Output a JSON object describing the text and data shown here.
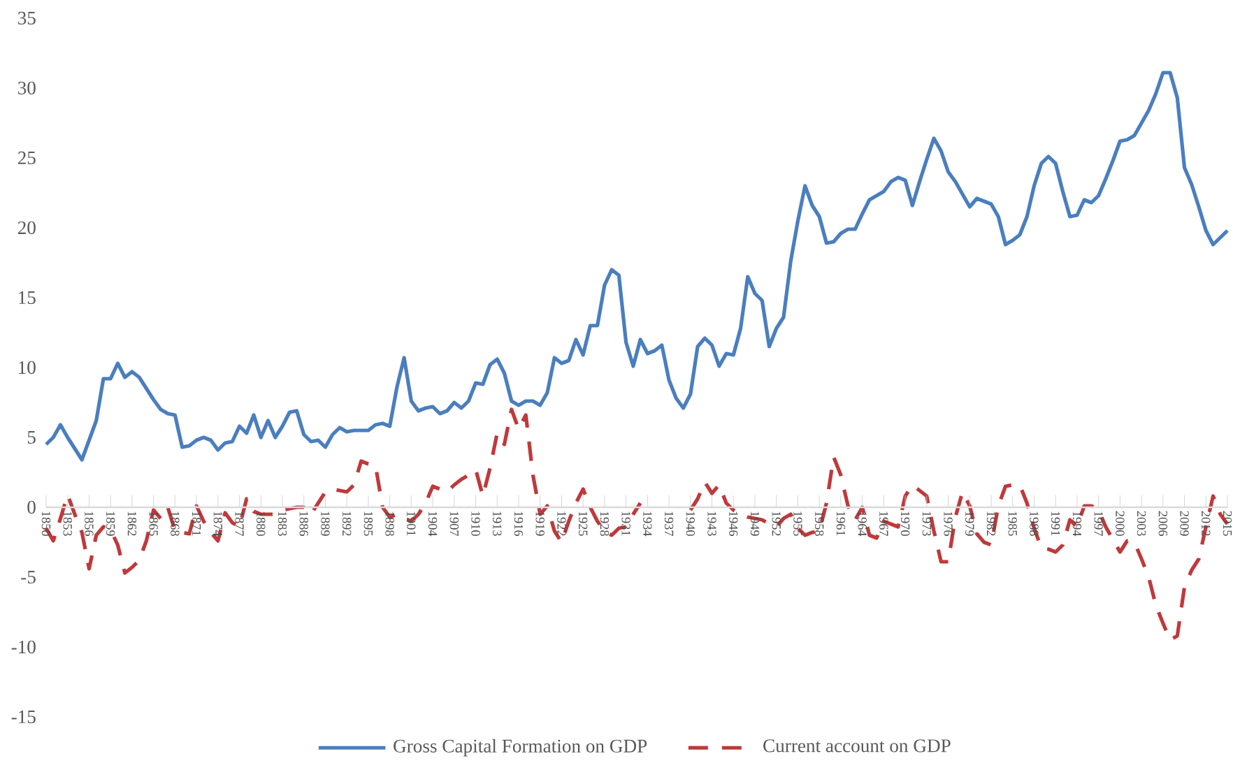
{
  "chart_data": {
    "type": "line",
    "categories": [
      "1850",
      null,
      null,
      "1853",
      null,
      null,
      "1856",
      null,
      null,
      "1859",
      null,
      null,
      "1862",
      null,
      null,
      "1865",
      null,
      null,
      "1868",
      null,
      null,
      "1871",
      null,
      null,
      "1874",
      null,
      null,
      "1877",
      null,
      null,
      "1880",
      null,
      null,
      "1883",
      null,
      null,
      "1886",
      null,
      null,
      "1889",
      null,
      null,
      "1892",
      null,
      null,
      "1895",
      null,
      null,
      "1898",
      null,
      null,
      "1901",
      null,
      null,
      "1904",
      null,
      null,
      "1907",
      null,
      null,
      "1910",
      null,
      null,
      "1913",
      null,
      null,
      "1916",
      null,
      null,
      "1919",
      null,
      null,
      "1922",
      null,
      null,
      "1925",
      null,
      null,
      "1928",
      null,
      null,
      "1931",
      null,
      null,
      "1934",
      null,
      null,
      "1937",
      null,
      null,
      "1940",
      null,
      null,
      "1943",
      null,
      null,
      "1946",
      null,
      null,
      "1949",
      null,
      null,
      "1952",
      null,
      null,
      "1955",
      null,
      null,
      "1958",
      null,
      null,
      "1961",
      null,
      null,
      "1964",
      null,
      null,
      "1967",
      null,
      null,
      "1970",
      null,
      null,
      "1973",
      null,
      null,
      "1976",
      null,
      null,
      "1979",
      null,
      null,
      "1982",
      null,
      null,
      "1985",
      null,
      null,
      "1988",
      null,
      null,
      "1991",
      null,
      null,
      "1994",
      null,
      null,
      "1997",
      null,
      null,
      "2000",
      null,
      null,
      "2003",
      null,
      null,
      "2006",
      null,
      null,
      "2009",
      null,
      null,
      "2012",
      null,
      null,
      "2015"
    ],
    "series": [
      {
        "name": "Gross Capital Formation on GDP",
        "color": "#4a7ebf",
        "line_style": "solid",
        "values": [
          4.5,
          5.0,
          5.9,
          5.0,
          4.2,
          3.4,
          4.8,
          6.2,
          9.2,
          9.2,
          10.3,
          9.3,
          9.7,
          9.3,
          8.5,
          7.7,
          7.0,
          6.7,
          6.6,
          4.3,
          4.4,
          4.8,
          5.0,
          4.8,
          4.1,
          4.6,
          4.7,
          5.8,
          5.3,
          6.6,
          5.0,
          6.2,
          5.0,
          5.8,
          6.8,
          6.9,
          5.2,
          4.7,
          4.8,
          4.3,
          5.2,
          5.7,
          5.4,
          5.5,
          5.5,
          5.5,
          5.9,
          6.0,
          5.8,
          8.6,
          10.7,
          7.6,
          6.9,
          7.1,
          7.2,
          6.7,
          6.9,
          7.5,
          7.1,
          7.6,
          8.9,
          8.8,
          10.2,
          10.6,
          9.6,
          7.6,
          7.3,
          7.6,
          7.6,
          7.3,
          8.2,
          10.7,
          10.3,
          10.5,
          12.0,
          10.9,
          13.0,
          13.0,
          15.9,
          17.0,
          16.6,
          11.8,
          10.1,
          12.0,
          11.0,
          11.2,
          11.6,
          9.1,
          7.8,
          7.1,
          8.1,
          11.5,
          12.1,
          11.6,
          10.1,
          11.0,
          10.9,
          12.8,
          16.5,
          15.3,
          14.8,
          11.5,
          12.8,
          13.6,
          17.6,
          20.5,
          23.0,
          21.6,
          20.8,
          18.9,
          19.0,
          19.6,
          19.9,
          19.9,
          21.0,
          22.0,
          22.3,
          22.6,
          23.3,
          23.6,
          23.4,
          21.6,
          23.3,
          24.9,
          26.4,
          25.5,
          24.0,
          23.3,
          22.4,
          21.5,
          22.1,
          21.9,
          21.7,
          20.8,
          18.8,
          19.1,
          19.5,
          20.8,
          23.0,
          24.6,
          25.1,
          24.6,
          22.6,
          20.8,
          20.9,
          22.0,
          21.8,
          22.3,
          23.5,
          24.8,
          26.2,
          26.3,
          26.6,
          27.5,
          28.4,
          29.6,
          31.1,
          31.1,
          29.3,
          24.3,
          23.1,
          21.5,
          19.8,
          18.8,
          19.3,
          19.8
        ]
      },
      {
        "name": "Current account on GDP",
        "color": "#c0393b",
        "line_style": "dashed",
        "values": [
          -1.5,
          -2.4,
          -0.8,
          0.9,
          -0.5,
          -1.8,
          -4.4,
          -2.0,
          -1.4,
          -1.6,
          -2.7,
          -4.7,
          -4.3,
          -3.8,
          -2.4,
          -0.2,
          -0.8,
          0.0,
          -1.7,
          -1.8,
          -1.9,
          0.1,
          -1.0,
          -1.8,
          -2.4,
          -0.4,
          -1.1,
          -1.4,
          0.6,
          -0.3,
          -0.5,
          -0.5,
          -0.5,
          -0.2,
          -0.1,
          0.0,
          0.0,
          -0.5,
          0.3,
          1.1,
          1.3,
          1.2,
          1.1,
          1.6,
          3.3,
          3.1,
          3.0,
          0.0,
          -0.7,
          -0.5,
          -0.8,
          -1.0,
          -0.5,
          0.3,
          1.5,
          1.3,
          1.1,
          1.6,
          2.0,
          2.3,
          2.7,
          0.8,
          2.8,
          5.3,
          4.5,
          7.0,
          5.6,
          6.6,
          2.3,
          -0.5,
          0.1,
          -1.7,
          -2.5,
          -1.0,
          0.3,
          1.3,
          0.0,
          -1.0,
          -1.7,
          -2.0,
          -1.5,
          -1.4,
          -0.5,
          0.3,
          null,
          null,
          null,
          null,
          null,
          null,
          -0.2,
          0.6,
          1.8,
          1.0,
          1.6,
          0.3,
          -0.2,
          -0.5,
          -0.7,
          -0.8,
          -0.9,
          -1.2,
          -1.4,
          -0.8,
          -0.5,
          -1.5,
          -2.0,
          -1.8,
          -1.7,
          0.3,
          3.6,
          2.3,
          0.1,
          -0.9,
          0.0,
          -2.0,
          -2.2,
          -1.0,
          -1.2,
          -1.4,
          0.8,
          1.6,
          1.2,
          0.8,
          -1.7,
          -3.9,
          -3.9,
          -0.7,
          1.1,
          0.1,
          -1.9,
          -2.5,
          -2.7,
          0.1,
          1.5,
          1.6,
          1.6,
          0.3,
          -1.5,
          -2.9,
          -3.0,
          -3.2,
          -2.7,
          -0.9,
          -1.4,
          0.1,
          0.1,
          -0.2,
          -1.4,
          -2.3,
          -3.2,
          -2.4,
          -2.5,
          -3.7,
          -5.0,
          -7.0,
          -8.3,
          -9.5,
          -9.2,
          -5.7,
          -4.5,
          -3.7,
          -1.4,
          0.8,
          -0.5,
          -1.2
        ]
      }
    ],
    "ylim": [
      -15,
      35
    ],
    "yticks": [
      -15,
      -10,
      -5,
      0,
      5,
      10,
      15,
      20,
      25,
      30,
      35
    ],
    "legend": "bottom"
  }
}
